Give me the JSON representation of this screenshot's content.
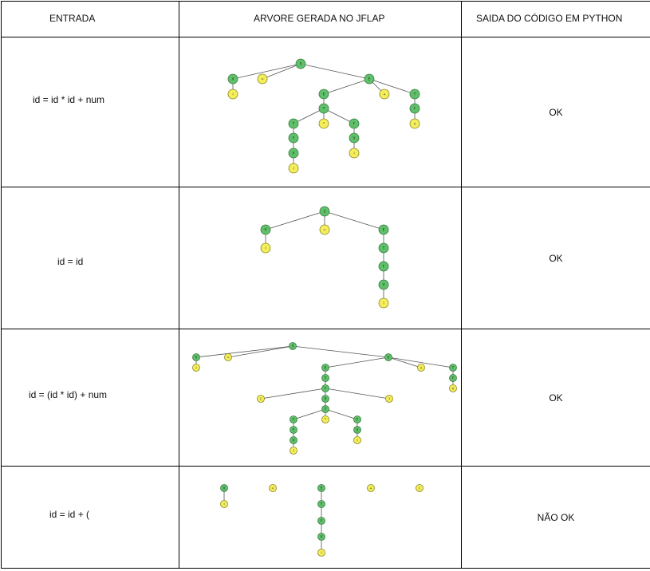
{
  "headers": {
    "entrada": "ENTRADA",
    "arvore": "ARVORE GERADA NO JFLAP",
    "saida": "SAIDA DO CÓDIGO EM PYTHON"
  },
  "rows": [
    {
      "entrada": "id = id * id + num",
      "saida": "OK"
    },
    {
      "entrada": "id = id",
      "saida": "OK"
    },
    {
      "entrada": "id = (id * id) + num",
      "saida": "OK"
    },
    {
      "entrada": "id = id + (",
      "saida": "NÃO OK"
    }
  ],
  "colors": {
    "nonterminal": "#5fc06a",
    "terminal": "#f3ee5a",
    "border": "#000000"
  }
}
